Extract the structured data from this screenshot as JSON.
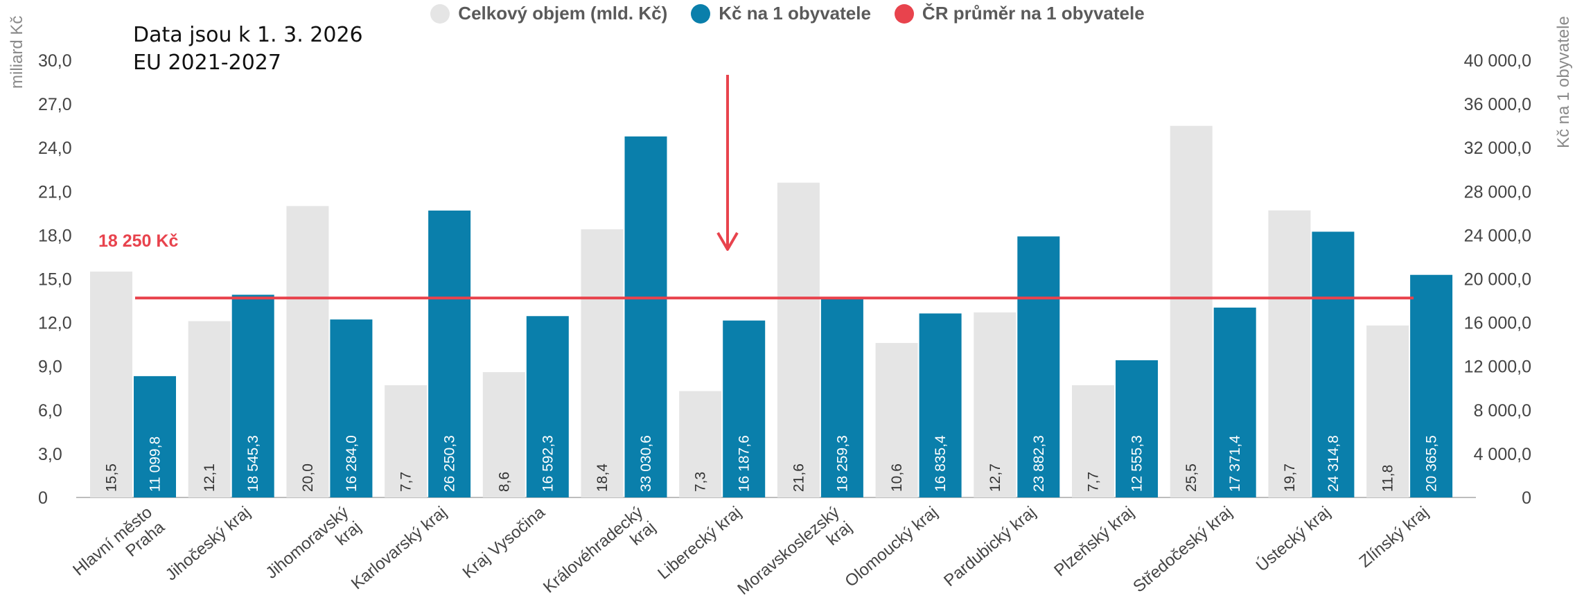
{
  "note": {
    "line1": "Data jsou k 1. 3. 2026",
    "line2": "EU 2021-2027"
  },
  "legend": [
    {
      "label": "Celkový objem (mld. Kč)",
      "color": "#e5e5e5"
    },
    {
      "label": "Kč na 1 obyvatele",
      "color": "#0a7fab"
    },
    {
      "label": "ČR průměr na 1 obyvatele",
      "color": "#e8434d"
    }
  ],
  "chart_data": {
    "type": "bar",
    "categories": [
      "Hlavní město Praha",
      "Jihočeský kraj",
      "Jihomoravský kraj",
      "Karlovarský kraj",
      "Kraj Vysočina",
      "Královéhradecký kraj",
      "Liberecký kraj",
      "Moravskoslezský kraj",
      "Olomoucký kraj",
      "Pardubický kraj",
      "Plzeňský kraj",
      "Středočeský kraj",
      "Ústecký kraj",
      "Zlínský kraj"
    ],
    "series": [
      {
        "name": "Celkový objem (mld. Kč)",
        "axis": "left",
        "color": "#e5e5e5",
        "values": [
          15.5,
          12.1,
          20.0,
          7.7,
          8.6,
          18.4,
          7.3,
          21.6,
          10.6,
          12.7,
          7.7,
          25.5,
          19.7,
          11.8
        ],
        "labels": [
          "15,5",
          "12,1",
          "20,0",
          "7,7",
          "8,6",
          "18,4",
          "7,3",
          "21,6",
          "10,6",
          "12,7",
          "7,7",
          "25,5",
          "19,7",
          "11,8"
        ]
      },
      {
        "name": "Kč na 1 obyvatele",
        "axis": "right",
        "color": "#0a7fab",
        "values": [
          11099.8,
          18545.3,
          16284.0,
          26250.3,
          16592.3,
          33030.6,
          16187.6,
          18259.3,
          16835.4,
          23882.3,
          12555.3,
          17371.4,
          24314.8,
          20365.5
        ],
        "labels": [
          "11 099,8",
          "18 545,3",
          "16 284,0",
          "26 250,3",
          "16 592,3",
          "33 030,6",
          "16 187,6",
          "18 259,3",
          "16 835,4",
          "23 882,3",
          "12 555,3",
          "17 371,4",
          "24 314,8",
          "20 365,5"
        ]
      }
    ],
    "reference_line": {
      "name": "ČR průměr na 1 obyvatele",
      "value": 18250,
      "label": "18 250 Kč",
      "axis": "right",
      "color": "#e8434d"
    },
    "y_left": {
      "label": "miliard Kč",
      "ylim": [
        0,
        30
      ],
      "ticks": [
        0,
        3,
        6,
        9,
        12,
        15,
        18,
        21,
        24,
        27,
        30
      ],
      "tick_labels": [
        "0",
        "3,0",
        "6,0",
        "9,0",
        "12,0",
        "15,0",
        "18,0",
        "21,0",
        "24,0",
        "27,0",
        "30,0"
      ]
    },
    "y_right": {
      "label": "Kč na 1 obyvatele",
      "ylim": [
        0,
        40000
      ],
      "ticks": [
        0,
        4000,
        8000,
        12000,
        16000,
        20000,
        24000,
        28000,
        32000,
        36000,
        40000
      ],
      "tick_labels": [
        "0",
        "4 000,0",
        "8 000,0",
        "12 000,0",
        "16 000,0",
        "20 000,0",
        "24 000,0",
        "28 000,0",
        "32 000,0",
        "36 000,0",
        "40 000,0"
      ]
    },
    "category_label_lines": [
      [
        "Hlavní město",
        "Praha"
      ],
      [
        "Jihočeský kraj"
      ],
      [
        "Jihomoravský",
        "kraj"
      ],
      [
        "Karlovarský kraj"
      ],
      [
        "Kraj Vysočina"
      ],
      [
        "Královéhradecký",
        "kraj"
      ],
      [
        "Liberecký kraj"
      ],
      [
        "Moravskoslezský",
        "kraj"
      ],
      [
        "Olomoucký kraj"
      ],
      [
        "Pardubický kraj"
      ],
      [
        "Plzeňský kraj"
      ],
      [
        "Středočeský kraj"
      ],
      [
        "Ústecký kraj"
      ],
      [
        "Zlínský kraj"
      ]
    ],
    "annotation": "down-arrow above Liberecký kraj",
    "grid": false,
    "legend_position": "top-center"
  }
}
